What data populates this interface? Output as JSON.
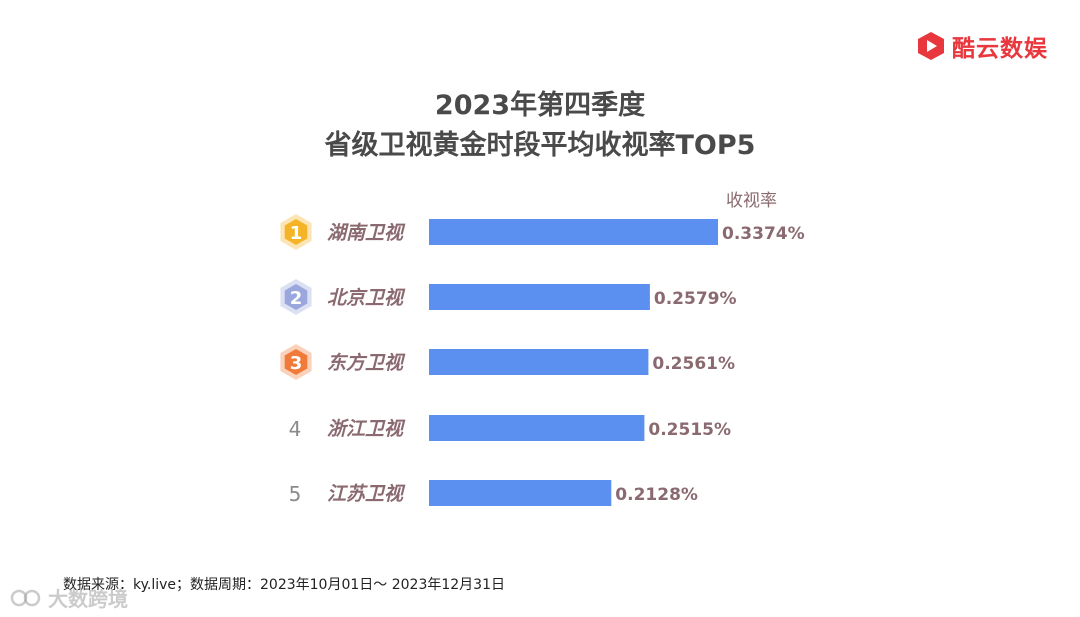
{
  "brand": {
    "name": "酷云数娱",
    "color": "#e8373d"
  },
  "title_line1": "2023年第四季度",
  "title_line2": "省级卫视黄金时段平均收视率TOP5",
  "footer": "数据来源：ky.live；数据周期：2023年10月01日～ 2023年12月31日",
  "watermark": "大数跨境",
  "colors": {
    "bar": "#5b8ff0",
    "value_text": "#8a6a70",
    "label_text": "#8a6a70",
    "badge_gold": "#f5b428",
    "badge_silver": "#9aa7dd",
    "badge_bronze": "#f07a3a"
  },
  "chart_data": {
    "type": "bar",
    "orientation": "horizontal",
    "title": "2023年第四季度 省级卫视黄金时段平均收视率TOP5",
    "unit_label": "收视率",
    "categories": [
      "湖南卫视",
      "北京卫视",
      "东方卫视",
      "浙江卫视",
      "江苏卫视"
    ],
    "ranks": [
      "1",
      "2",
      "3",
      "4",
      "5"
    ],
    "badges": [
      "gold-hexagon",
      "silver-hexagon",
      "bronze-hexagon",
      "none",
      "none"
    ],
    "values": [
      0.3374,
      0.2579,
      0.2561,
      0.2515,
      0.2128
    ],
    "value_labels": [
      "0.3374%",
      "0.2579%",
      "0.2561%",
      "0.2515%",
      "0.2128%"
    ],
    "xlim": [
      0,
      0.3374
    ],
    "grid": false,
    "legend": "none"
  }
}
